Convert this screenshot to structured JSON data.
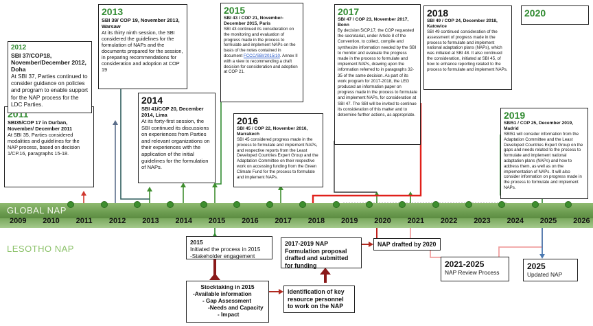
{
  "global_label": "GLOBAL NAP",
  "lesotho_label": "LESOTHO NAP",
  "years": [
    "2009",
    "2010",
    "2011",
    "2012",
    "2013",
    "2014",
    "2015",
    "2016",
    "2017",
    "2018",
    "2019",
    "2020",
    "2021",
    "2022",
    "2023",
    "2024",
    "2025",
    "2026"
  ],
  "events": {
    "e2011": {
      "year": "2011",
      "head": "SBI35/COP 17 in Durban, November/ December 2011",
      "text": "At SBI 35, Parties considered modalities and guidelines for the NAP process, based on decision 1/CP.16, paragraphs 15-18."
    },
    "e2012": {
      "year": "2012",
      "head": "SBI 37/COP18, November/December 2012, Doha",
      "text": "At SBI 37, Parties continued to consider guidance on policies and program to enable support for the NAP process for the LDC Parties."
    },
    "e2013": {
      "year": "2013",
      "head": "SBI 39/ COP 19, November 2013, Warsaw",
      "text": "At its thirty ninth session, the SBI considered the guidelines for the formulation of NAPs and the documents prepared for the session, in preparing recommendations for consideration and adoption at COP 19"
    },
    "e2014": {
      "year": "2014",
      "head": "SBI 41/COP 20, December 2014, Lima",
      "text": "At its forty-first session, the SBI continued its discussions on experiences from Parties and relevant organizations on their experiences with the application of the initial guidelines for the formulation of NAPs."
    },
    "e2015": {
      "year": "2015",
      "head": "SBI 43 / COP 21, November-December 2015, Paris",
      "text_a": "SBI 43 continued its consideration on the monitoring and evaluation of progress made in the process to formulate and implement NAPs on the basis of the notes contained in document",
      "link": "FCCC/SBI/2015/10",
      "text_b": ". Annex II with a view to recommending a draft decision for consideration and adoption at COP 21."
    },
    "e2016": {
      "year": "2016",
      "head": "SBI 45 / COP 22, November 2016, Marrakech",
      "text": "SBI 45 considered progress made in the process to formulate and implement NAPs, and respective reports from the Least Developed Countries Expert Group and the Adaptation Committee on their respective work on accessing funding from the Green Climate Fund for the process to formulate and implement NAPs."
    },
    "e2017": {
      "year": "2017",
      "head": "SBI 47 / COP 23, November 2017, Bonn",
      "text": "By decision 5/CP.17, the COP requested the secretariat, under Article 8 of the Convention, to collect, compile and synthesize information needed by the SBI to monitor and evaluate the progress made in the process to formulate and implement NAPs, drawing upon the information referred to in paragraphs 32-35 of the same decision. As part of its work program for 2017-2018, the LEG produced an information paper on progress made in the process to formulate and implement NAPs, for consideration at SBI 47. The SBI will be invited to continue its consideration of this matter and to determine further actions, as appropriate."
    },
    "e2018": {
      "year": "2018",
      "head": "SBI 49 / COP 24, December 2018, Katowice",
      "text": "SBI 49 continued consideration of the assessment of progress made in the process to formulate and implement national adaptation plans (NAPs), which was initiated at SBI 48. It also continued the consideration, initiated at SBI 45, of how to enhance reporting related to the process to formulate and implement NAPs."
    },
    "e2019": {
      "year": "2019",
      "head": "SBI51 / COP 25, December 2019, Madrid",
      "text": "SBI51 will consider information from the Adaptation Committee and the Least Developed Countries Expert Group on the gaps and needs related to the process to formulate and implement national adaptation plans (NAPs) and how to address them, as well as on the implementation of NAPs. It will also consider information on progress made in the process to formulate and implement NAPs."
    },
    "e2020": {
      "year": "2020"
    }
  },
  "lesotho": {
    "l2015": {
      "title": "2015",
      "lines": [
        "Initiated the process in 2015",
        "-Stakeholder engagement"
      ]
    },
    "stock": {
      "title": "Stocktaking in 2015",
      "lines": [
        "-Available information",
        "- Gap Assessment",
        "-Needs and Capacity",
        "- Impact"
      ]
    },
    "form": {
      "title": "2017-2019 NAP Formulation proposal drafted and submitted for funding"
    },
    "ident": {
      "title": "Identification of key resource personnel to work on the NAP"
    },
    "drafted": {
      "title": "NAP drafted by 2020"
    },
    "review": {
      "title": "2021-2025",
      "sub": "NAP Review Process"
    },
    "updated": {
      "title": "2025",
      "sub": "Updated NAP"
    }
  }
}
